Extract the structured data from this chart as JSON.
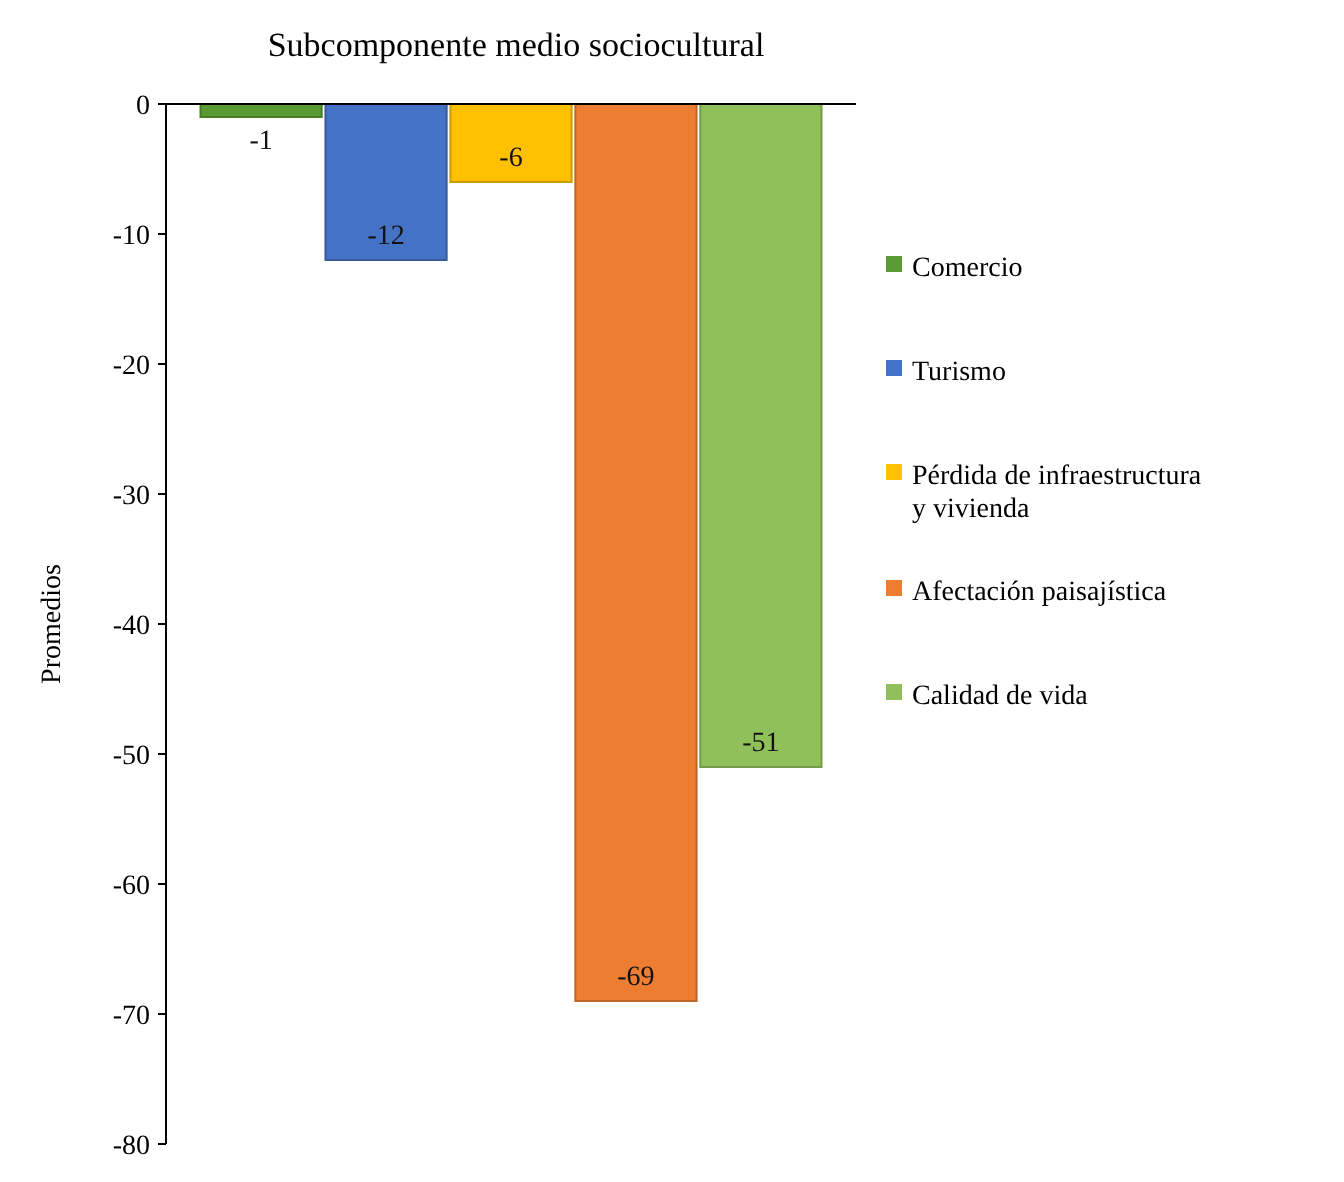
{
  "chart_data": {
    "type": "bar",
    "title": "Subcomponente medio sociocultural",
    "ylabel": "Promedios",
    "categories": [
      null
    ],
    "series": [
      {
        "name": "Comercio",
        "color": "#5a9a32",
        "values": [
          -1
        ]
      },
      {
        "name": "Turismo",
        "color": "#4472c4",
        "values": [
          -12
        ]
      },
      {
        "name": "Pérdida de infraestructura y vivienda",
        "color": "#ffc000",
        "values": [
          -6
        ]
      },
      {
        "name": "Afectación paisajística",
        "color": "#ed7d31",
        "values": [
          -69
        ]
      },
      {
        "name": "Calidad de vida",
        "color": "#8fc05a",
        "values": [
          -51
        ]
      }
    ],
    "ylim": [
      -80,
      0
    ],
    "yticks": [
      -80,
      -70,
      -60,
      -50,
      -40,
      -30,
      -20,
      -10,
      0
    ],
    "grid": false,
    "legend": "right",
    "data_labels": true
  }
}
